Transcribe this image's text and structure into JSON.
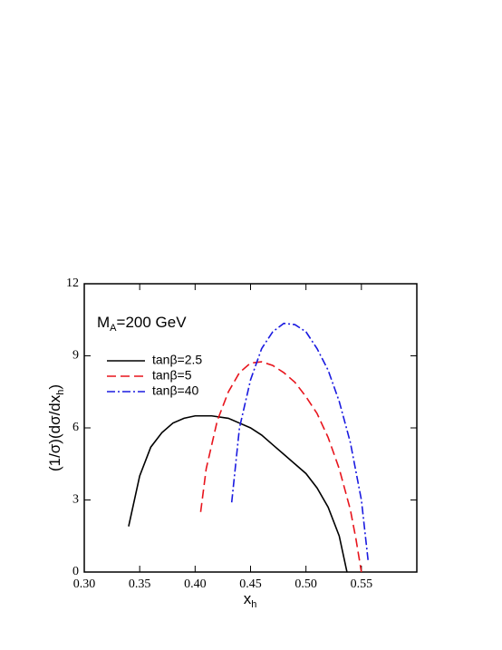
{
  "chart_data": {
    "type": "line",
    "annotation": {
      "main": "M",
      "sub": "A",
      "rest": "=200 GeV"
    },
    "xlabel": {
      "main": "x",
      "sub": "h"
    },
    "ylabel": {
      "main": "(1/σ)(dσ/dx",
      "sub": "h",
      "rest": ")"
    },
    "xlim": [
      0.3,
      0.6
    ],
    "ylim": [
      0,
      12
    ],
    "xticks": [
      {
        "value": 0.3,
        "label": "0.30"
      },
      0.35,
      {
        "value": 0.4,
        "label": "0.40"
      },
      0.45,
      {
        "value": 0.5,
        "label": "0.50"
      },
      0.55
    ],
    "yticks": [
      0,
      3,
      6,
      9,
      12
    ],
    "legend": "upper left",
    "series": [
      {
        "name": "tanβ=2.5",
        "color": "#000000",
        "dash": "solid",
        "x": [
          0.34,
          0.35,
          0.36,
          0.37,
          0.38,
          0.39,
          0.4,
          0.415,
          0.43,
          0.44,
          0.45,
          0.46,
          0.47,
          0.48,
          0.49,
          0.5,
          0.51,
          0.52,
          0.53,
          0.537
        ],
        "values": [
          1.9,
          4.0,
          5.2,
          5.8,
          6.2,
          6.4,
          6.5,
          6.5,
          6.4,
          6.2,
          6.0,
          5.7,
          5.3,
          4.9,
          4.5,
          4.1,
          3.5,
          2.7,
          1.5,
          0
        ]
      },
      {
        "name": "tanβ=5",
        "color": "#e8141c",
        "dash": "dashed",
        "x": [
          0.405,
          0.41,
          0.42,
          0.43,
          0.44,
          0.45,
          0.46,
          0.47,
          0.48,
          0.49,
          0.5,
          0.51,
          0.52,
          0.53,
          0.54,
          0.545,
          0.55
        ],
        "values": [
          2.5,
          4.3,
          6.3,
          7.5,
          8.3,
          8.7,
          8.75,
          8.6,
          8.3,
          7.9,
          7.3,
          6.6,
          5.6,
          4.3,
          2.6,
          1.4,
          0
        ]
      },
      {
        "name": "tanβ=40",
        "color": "#1a1ae0",
        "dash": "dashdot",
        "x": [
          0.433,
          0.44,
          0.45,
          0.46,
          0.47,
          0.48,
          0.49,
          0.5,
          0.51,
          0.52,
          0.53,
          0.54,
          0.55,
          0.556
        ],
        "values": [
          2.9,
          6.0,
          8.0,
          9.3,
          10.0,
          10.35,
          10.3,
          10.0,
          9.3,
          8.4,
          7.1,
          5.4,
          3.0,
          0.5
        ]
      }
    ]
  }
}
